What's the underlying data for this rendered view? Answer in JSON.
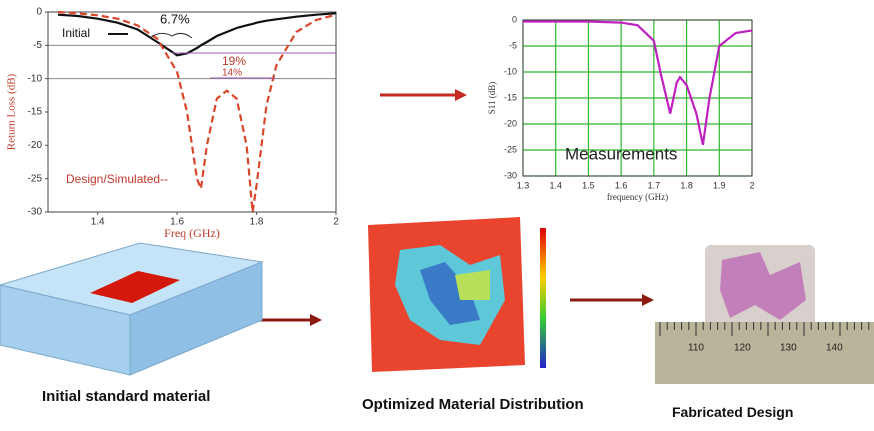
{
  "chart_data": [
    {
      "type": "line",
      "xlabel": "Freq (GHz)",
      "ylabel": "Return Loss (dB)",
      "x": [
        1.3,
        1.35,
        1.4,
        1.45,
        1.5,
        1.55,
        1.6,
        1.625,
        1.65,
        1.66,
        1.675,
        1.7,
        1.725,
        1.75,
        1.775,
        1.79,
        1.8,
        1.825,
        1.85,
        1.9,
        1.95,
        2.0
      ],
      "series": [
        {
          "name": "Initial",
          "color": "#111111",
          "dash": false,
          "values": [
            -0.4,
            -0.6,
            -1,
            -1.6,
            -2.6,
            -4.5,
            -6.5,
            -6.2,
            -5.4,
            -5,
            -4.5,
            -3.6,
            -3,
            -2.4,
            -2,
            -1.8,
            -1.6,
            -1.3,
            -1.1,
            -0.7,
            -0.4,
            -0.2
          ]
        },
        {
          "name": "Design/Simulated--",
          "color": "#d9472b",
          "dash": true,
          "values": [
            0,
            -0.2,
            -0.5,
            -1,
            -2,
            -4,
            -9,
            -15,
            -25,
            -26.5,
            -20,
            -13,
            -11.8,
            -13,
            -20,
            -30,
            -26,
            -14,
            -8,
            -3,
            -1.2,
            -0.4
          ]
        }
      ],
      "annotations": [
        "6.7%",
        "19%",
        "14%"
      ],
      "hlines": [
        -5,
        -10
      ],
      "xlim": [
        1.275,
        2.0
      ],
      "xticks": [
        1.4,
        1.6,
        1.8,
        2
      ],
      "ylim": [
        -30,
        0
      ],
      "yticks": [
        0,
        -5,
        -10,
        -15,
        -20,
        -25,
        -30
      ],
      "grid": false
    },
    {
      "type": "line",
      "xlabel": "frequency (GHz)",
      "ylabel": "S11 (dB)",
      "x": [
        1.3,
        1.4,
        1.5,
        1.6,
        1.65,
        1.7,
        1.72,
        1.75,
        1.77,
        1.78,
        1.8,
        1.83,
        1.85,
        1.87,
        1.9,
        1.95,
        2.0
      ],
      "series": [
        {
          "color": "#c020c0",
          "dash": false,
          "values": [
            -0.3,
            -0.3,
            -0.3,
            -0.5,
            -1,
            -4,
            -10,
            -18,
            -12,
            -11,
            -12.5,
            -18,
            -24,
            -15,
            -5,
            -2.5,
            -2
          ]
        }
      ],
      "annotations": [
        "Measurements"
      ],
      "xlim": [
        1.3,
        2.0
      ],
      "xticks": [
        1.3,
        1.4,
        1.5,
        1.6,
        1.7,
        1.8,
        1.9,
        2
      ],
      "ylim": [
        -30,
        0
      ],
      "yticks": [
        0,
        -5,
        -10,
        -15,
        -20,
        -25,
        -30
      ],
      "grid": true
    }
  ],
  "captions": [
    "Initial standard material",
    "Optimized Material Distribution",
    "Fabricated Design"
  ],
  "photo": {
    "ruler_labels": [
      "110",
      "120",
      "130",
      "140"
    ]
  }
}
